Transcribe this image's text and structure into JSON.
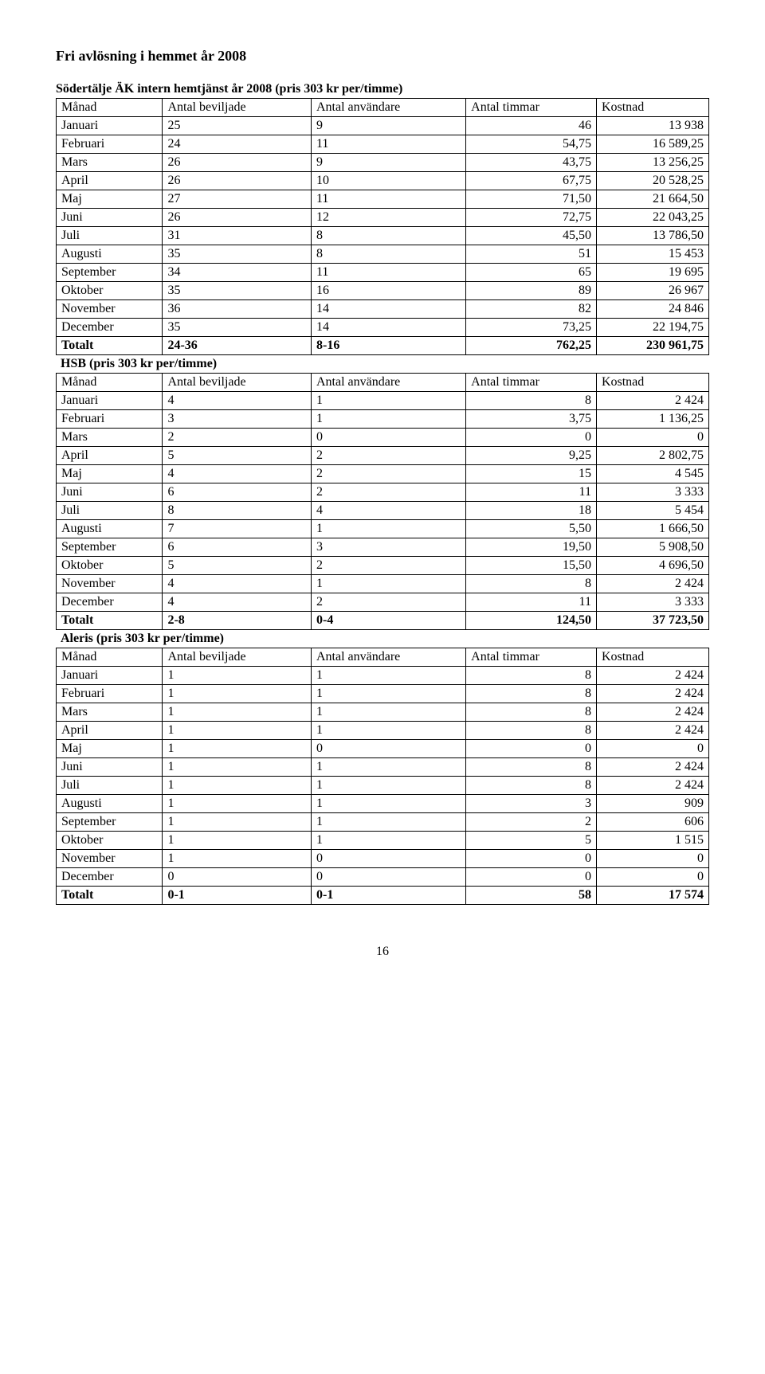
{
  "title": "Fri avlösning i hemmet år 2008",
  "page_number": "16",
  "tables": [
    {
      "subtitle": "Södertälje ÄK intern hemtjänst år 2008 (pris 303 kr per/timme)",
      "header": [
        "Månad",
        "Antal beviljade",
        "Antal användare",
        "Antal timmar",
        "Kostnad"
      ],
      "rows": [
        [
          "Januari",
          "25",
          "9",
          "46",
          "13 938"
        ],
        [
          "Februari",
          "24",
          "11",
          "54,75",
          "16 589,25"
        ],
        [
          "Mars",
          "26",
          "9",
          "43,75",
          "13 256,25"
        ],
        [
          "April",
          "26",
          "10",
          "67,75",
          "20 528,25"
        ],
        [
          "Maj",
          "27",
          "11",
          "71,50",
          "21 664,50"
        ],
        [
          "Juni",
          "26",
          "12",
          "72,75",
          "22 043,25"
        ],
        [
          "Juli",
          "31",
          "8",
          "45,50",
          "13 786,50"
        ],
        [
          "Augusti",
          "35",
          "8",
          "51",
          "15 453"
        ],
        [
          "September",
          "34",
          "11",
          "65",
          "19 695"
        ],
        [
          "Oktober",
          "35",
          "16",
          "89",
          "26 967"
        ],
        [
          "November",
          "36",
          "14",
          "82",
          "24 846"
        ],
        [
          "December",
          "35",
          "14",
          "73,25",
          "22 194,75"
        ]
      ],
      "total": [
        "Totalt",
        "24-36",
        "8-16",
        "762,25",
        "230 961,75"
      ]
    },
    {
      "subtitle": "HSB (pris 303 kr per/timme)",
      "header": [
        "Månad",
        "Antal beviljade",
        "Antal användare",
        "Antal timmar",
        "Kostnad"
      ],
      "rows": [
        [
          "Januari",
          "4",
          "1",
          "8",
          "2 424"
        ],
        [
          "Februari",
          "3",
          "1",
          "3,75",
          "1 136,25"
        ],
        [
          "Mars",
          "2",
          "0",
          "0",
          "0"
        ],
        [
          "April",
          "5",
          "2",
          "9,25",
          "2 802,75"
        ],
        [
          "Maj",
          "4",
          "2",
          "15",
          "4 545"
        ],
        [
          "Juni",
          "6",
          "2",
          "11",
          "3 333"
        ],
        [
          "Juli",
          "8",
          "4",
          "18",
          "5 454"
        ],
        [
          "Augusti",
          "7",
          "1",
          "5,50",
          "1 666,50"
        ],
        [
          "September",
          "6",
          "3",
          "19,50",
          "5 908,50"
        ],
        [
          "Oktober",
          "5",
          "2",
          "15,50",
          "4 696,50"
        ],
        [
          "November",
          "4",
          "1",
          "8",
          "2 424"
        ],
        [
          "December",
          "4",
          "2",
          "11",
          "3 333"
        ]
      ],
      "total": [
        "Totalt",
        "2-8",
        "0-4",
        "124,50",
        "37 723,50"
      ]
    },
    {
      "subtitle": "Aleris (pris 303 kr per/timme)",
      "header": [
        "Månad",
        "Antal beviljade",
        "Antal användare",
        "Antal timmar",
        "Kostnad"
      ],
      "rows": [
        [
          "Januari",
          "1",
          "1",
          "8",
          "2 424"
        ],
        [
          "Februari",
          "1",
          "1",
          "8",
          "2 424"
        ],
        [
          "Mars",
          "1",
          "1",
          "8",
          "2 424"
        ],
        [
          "April",
          "1",
          "1",
          "8",
          "2 424"
        ],
        [
          "Maj",
          "1",
          "0",
          "0",
          "0"
        ],
        [
          "Juni",
          "1",
          "1",
          "8",
          "2 424"
        ],
        [
          "Juli",
          "1",
          "1",
          "8",
          "2 424"
        ],
        [
          "Augusti",
          "1",
          "1",
          "3",
          "909"
        ],
        [
          "September",
          "1",
          "1",
          "2",
          "606"
        ],
        [
          "Oktober",
          "1",
          "1",
          "5",
          "1 515"
        ],
        [
          "November",
          "1",
          "0",
          "0",
          "0"
        ],
        [
          "December",
          "0",
          "0",
          "0",
          "0"
        ]
      ],
      "total": [
        "Totalt",
        "0-1",
        "0-1",
        "58",
        "17 574"
      ]
    }
  ]
}
